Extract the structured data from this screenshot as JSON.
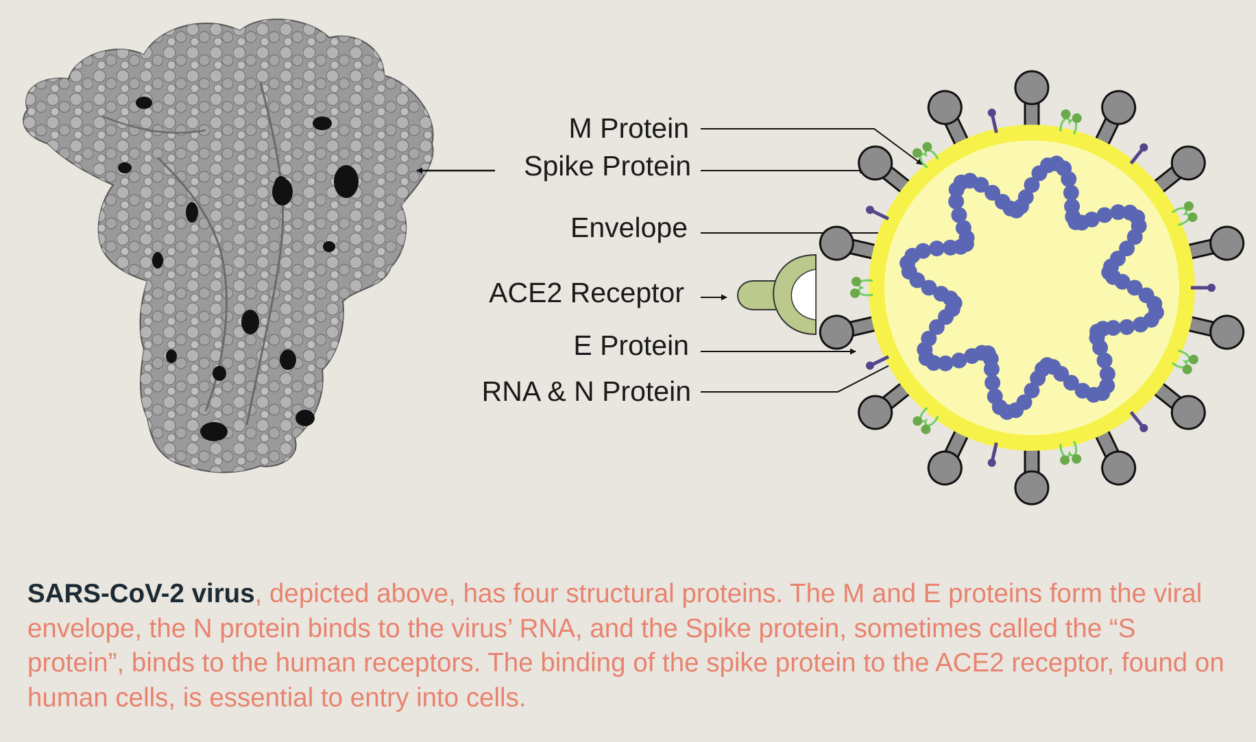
{
  "labels": {
    "m_protein": "M Protein",
    "spike_protein": "Spike Protein",
    "envelope": "Envelope",
    "ace2_receptor": "ACE2 Receptor",
    "e_protein": "E Protein",
    "rna_n_protein": "RNA & N Protein"
  },
  "caption": {
    "bold": "SARS-CoV-2 virus",
    "rest": ", depicted above, has four structural proteins. The M and E proteins form the viral envelope, the N protein binds to the virus’ RNA, and the Spike protein, sometimes called the “S protein”, binds to the human receptors. The binding of the spike protein to the ACE2 receptor, found on human cells, is essential to entry into cells."
  },
  "colors": {
    "background": "#e9e6df",
    "envelope_outer": "#f6f24a",
    "envelope_inner": "#fbf9b0",
    "rna_beads": "#5b67b4",
    "spike": "#8c8c8c",
    "receptor": "#bcc98d",
    "m_protein": "#6aaa4a",
    "e_protein": "#54468c",
    "caption_text": "#e8836f",
    "caption_bold": "#1b2a33"
  }
}
